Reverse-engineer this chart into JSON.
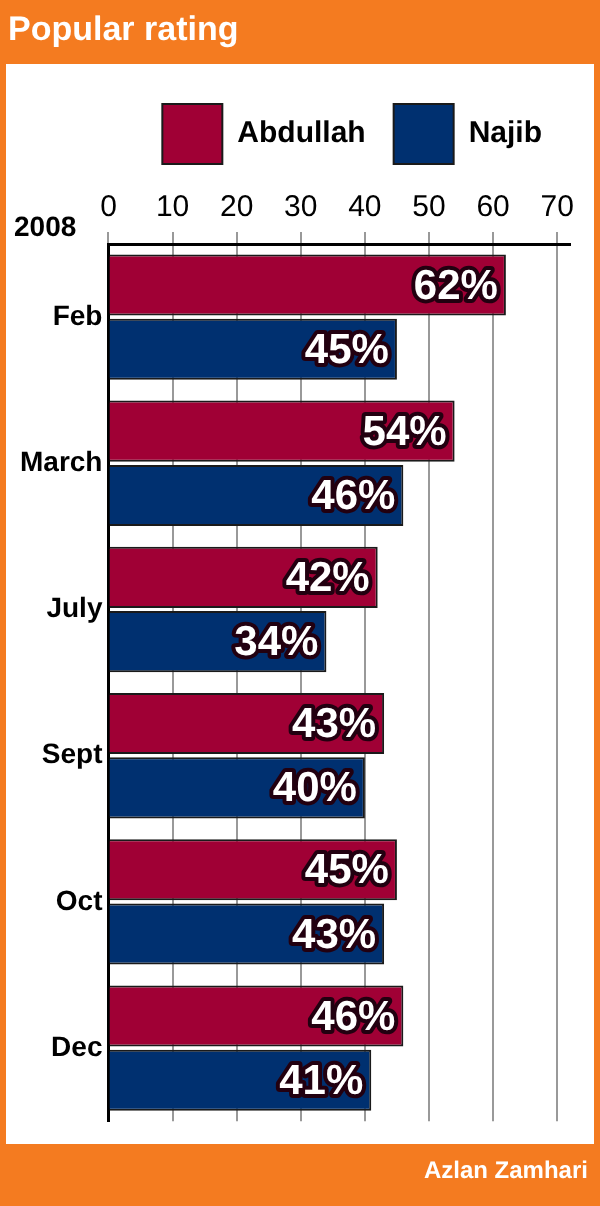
{
  "chart_data": {
    "type": "bar",
    "orientation": "horizontal",
    "title": "Popular rating",
    "ylabel": "2008",
    "categories": [
      "Feb",
      "March",
      "July",
      "Sept",
      "Oct",
      "Dec"
    ],
    "series": [
      {
        "name": "Abdullah",
        "color": "#a00035",
        "values": [
          62,
          54,
          42,
          43,
          45,
          46
        ],
        "value_labels": [
          "62%",
          "54%",
          "42%",
          "43%",
          "45%",
          "46%"
        ]
      },
      {
        "name": "Najib",
        "color": "#003070",
        "values": [
          45,
          46,
          34,
          40,
          43,
          41
        ],
        "value_labels": [
          "45%",
          "46%",
          "34%",
          "40%",
          "43%",
          "41%"
        ]
      }
    ],
    "xlim": [
      0,
      72
    ],
    "xticks": [
      0,
      10,
      20,
      30,
      40,
      50,
      60,
      70
    ],
    "grid": "x",
    "legend": "top",
    "annotations": [
      "Azlan Zamhari"
    ]
  }
}
